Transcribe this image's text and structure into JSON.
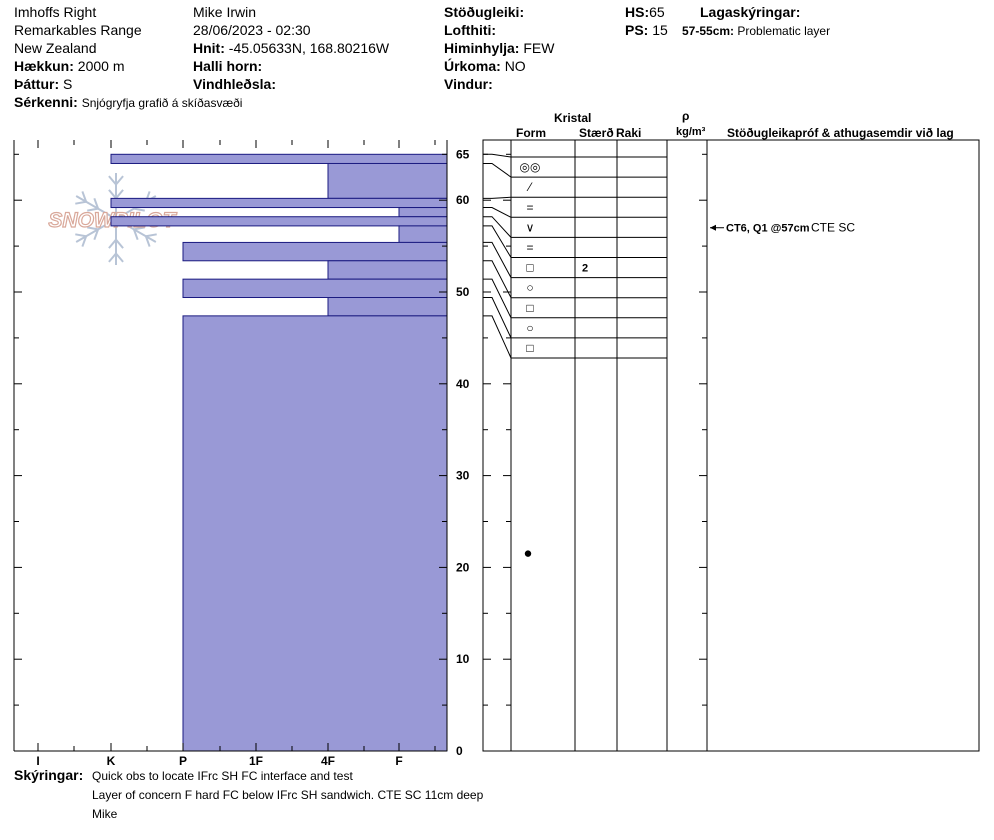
{
  "header": {
    "location": "Imhoffs Right",
    "range": "Remarkables Range",
    "country": "New Zealand",
    "elevation_label": "Hækkun:",
    "elevation_value": "2000 m",
    "aspect_label": "Þáttur:",
    "aspect_value": "S",
    "features_label": "Sérkenni:",
    "features_value": "Snjógryfja grafið á skíðasvæði",
    "observer": "Mike Irwin",
    "datetime": "28/06/2023 - 02:30",
    "coords_label": "Hnit:",
    "coords_value": "-45.05633N, 168.80216W",
    "slope_label": "Halli horn:",
    "wind_load_label": "Vindhleðsla:",
    "stability_label": "Stöðugleiki:",
    "air_temp_label": "Lofthiti:",
    "sky_label": "Himinhylja:",
    "sky_value": "FEW",
    "precip_label": "Úrkoma:",
    "precip_value": "NO",
    "wind_label": "Vindur:",
    "hs_label": "HS:",
    "hs_value": "65",
    "ps_label": "PS:",
    "ps_value": "15",
    "legend_label": "Lagaskýringar:",
    "legend_range": "57-55cm:",
    "legend_text": "Problematic layer"
  },
  "columns": {
    "kristal": "Kristal",
    "form": "Form",
    "size": "Stærð",
    "moisture": "Raki",
    "rho": "ρ",
    "density_unit": "kg/m³",
    "tests": "Stöðugleikapróf & athugasemdir við lag"
  },
  "notes": {
    "label": "Skýringar:",
    "lines": [
      "Quick obs to locate IFrc SH FC interface and test",
      "Layer of concern F hard FC below IFrc SH sandwich. CTE SC 11cm deep",
      "Mike"
    ]
  },
  "chart_data": {
    "type": "snow-profile",
    "depth_axis": {
      "min": 0,
      "max": 65,
      "ticks": [
        0,
        10,
        20,
        30,
        40,
        50,
        60,
        65
      ]
    },
    "hardness_axis": {
      "labels": [
        "I",
        "K",
        "P",
        "1F",
        "4F",
        "F"
      ]
    },
    "layers": [
      {
        "top": 65,
        "bottom": 64,
        "hardness": "K",
        "form_icon": "◎◎",
        "size": ""
      },
      {
        "top": 64,
        "bottom": 60.2,
        "hardness": "4F",
        "form_icon": "⁄",
        "size": ""
      },
      {
        "top": 60.2,
        "bottom": 59.2,
        "hardness": "K",
        "form_icon": "=",
        "size": ""
      },
      {
        "top": 59.2,
        "bottom": 58.2,
        "hardness": "F",
        "form_icon": "∨",
        "size": ""
      },
      {
        "top": 58.2,
        "bottom": 57.2,
        "hardness": "K",
        "form_icon": "=",
        "size": ""
      },
      {
        "top": 57.2,
        "bottom": 55.4,
        "hardness": "F",
        "form_icon": "□",
        "size": "2"
      },
      {
        "top": 55.4,
        "bottom": 53.4,
        "hardness": "P",
        "form_icon": "○",
        "size": ""
      },
      {
        "top": 53.4,
        "bottom": 51.4,
        "hardness": "4F",
        "form_icon": "□",
        "size": ""
      },
      {
        "top": 51.4,
        "bottom": 49.4,
        "hardness": "P",
        "form_icon": "○",
        "size": ""
      },
      {
        "top": 49.4,
        "bottom": 47.4,
        "hardness": "4F",
        "form_icon": "□",
        "size": ""
      },
      {
        "top": 47.4,
        "bottom": 0,
        "hardness": "P",
        "form_icon": "",
        "size": ""
      }
    ],
    "tests": [
      {
        "depth": 57,
        "label": "CT6, Q1 @57cm",
        "result": "CTE SC"
      }
    ],
    "temperature_points": [
      {
        "depth": 21.5
      }
    ],
    "colors": {
      "layer_fill": "#9999d6",
      "layer_stroke": "#1a1a80",
      "logo": "#d9a89a",
      "snowflake": "#b8c4d6"
    },
    "logo_text": "SNOWPILOT"
  }
}
